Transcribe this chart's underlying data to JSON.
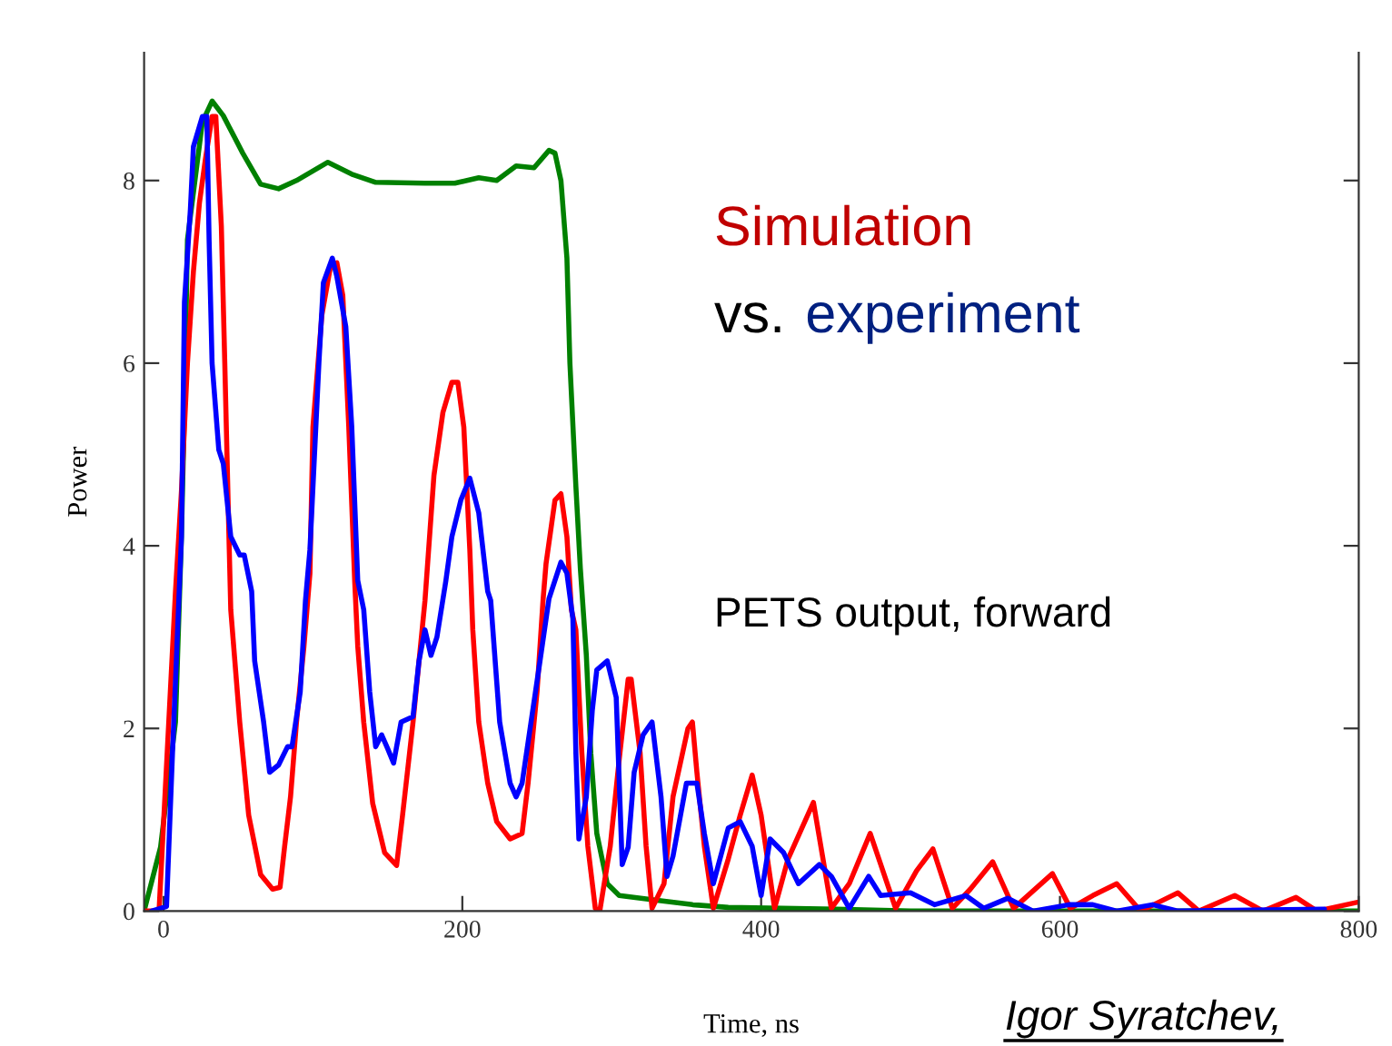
{
  "chart_data": {
    "type": "line",
    "xlabel": "Time, ns",
    "ylabel": "Power",
    "xlim": [
      -13,
      800
    ],
    "ylim": [
      0,
      9.4
    ],
    "xticks": [
      0,
      200,
      400,
      600,
      800
    ],
    "yticks": [
      0,
      2,
      4,
      6,
      8
    ],
    "annotations": [
      "Simulation",
      "vs.",
      "experiment",
      "PETS output, forward",
      "Igor Syratchev,"
    ],
    "series": [
      {
        "color": "#008000",
        "x": [
          -13,
          -2,
          8,
          12,
          14,
          16,
          26,
          32.5,
          40,
          53,
          65,
          77,
          89,
          110,
          126,
          142,
          175,
          195,
          211,
          223,
          236,
          248,
          258,
          262,
          266,
          270,
          272,
          276,
          279,
          283,
          286,
          290,
          297,
          305,
          329,
          354,
          378,
          450,
          500,
          800
        ],
        "values": [
          0,
          0.7,
          2.07,
          4.1,
          5.5,
          7.35,
          8.64,
          8.87,
          8.71,
          8.3,
          7.96,
          7.91,
          8.0,
          8.2,
          8.07,
          7.98,
          7.97,
          7.97,
          8.03,
          8.0,
          8.16,
          8.14,
          8.33,
          8.3,
          8.0,
          7.15,
          6.0,
          4.65,
          3.75,
          2.8,
          1.73,
          0.85,
          0.3,
          0.17,
          0.12,
          0.07,
          0.04,
          0.02,
          0,
          0
        ]
      },
      {
        "color": "#ff0000",
        "x": [
          -13,
          -3,
          8,
          12,
          16,
          20,
          24,
          28,
          32.5,
          35,
          38.7,
          41,
          44,
          45,
          51,
          57,
          65,
          73,
          78,
          81,
          85,
          89,
          94,
          98,
          100,
          106,
          112,
          116,
          120,
          124,
          128,
          130,
          134,
          140,
          148,
          156,
          160,
          167,
          175,
          181,
          187,
          193,
          197,
          201,
          205,
          207,
          211,
          217,
          223,
          232,
          240,
          244,
          250,
          254,
          256,
          262,
          266,
          270,
          273,
          276,
          280,
          284,
          289,
          292,
          299,
          305,
          311,
          313,
          319,
          323,
          327,
          335,
          341,
          351,
          354,
          357,
          362,
          368,
          378,
          386,
          394,
          400,
          409,
          418,
          435,
          447,
          459,
          473,
          490,
          504,
          515,
          528,
          540,
          555,
          569,
          595,
          607,
          622,
          638,
          654,
          679,
          693,
          717,
          736,
          758,
          772,
          800
        ],
        "values": [
          0,
          0,
          3.5,
          4.6,
          6.0,
          7.0,
          7.75,
          8.23,
          8.7,
          8.7,
          7.5,
          6.0,
          3.96,
          3.3,
          2.07,
          1.05,
          0.4,
          0.24,
          0.26,
          0.7,
          1.25,
          2.07,
          2.9,
          3.7,
          5.3,
          6.53,
          7.08,
          7.1,
          6.74,
          5.3,
          3.6,
          2.9,
          2.07,
          1.18,
          0.64,
          0.5,
          1.05,
          2.07,
          3.4,
          4.77,
          5.46,
          5.79,
          5.79,
          5.3,
          3.96,
          3.08,
          2.07,
          1.4,
          0.98,
          0.79,
          0.85,
          1.4,
          2.4,
          3.4,
          3.8,
          4.5,
          4.57,
          4.1,
          3.3,
          3.08,
          1.73,
          0.71,
          0.03,
          0,
          0.71,
          1.66,
          2.54,
          2.54,
          1.73,
          0.71,
          0.03,
          0.3,
          1.25,
          2.0,
          2.07,
          1.52,
          0.71,
          0.03,
          0.57,
          1.05,
          1.49,
          1.05,
          0.03,
          0.57,
          1.19,
          0.03,
          0.3,
          0.85,
          0.03,
          0.44,
          0.68,
          0.03,
          0.24,
          0.54,
          0.03,
          0.41,
          0.03,
          0.17,
          0.3,
          0,
          0.2,
          0,
          0.17,
          0,
          0.15,
          0,
          0.1
        ]
      },
      {
        "color": "#0000ff",
        "x": [
          -8,
          2,
          6,
          12,
          14,
          18,
          20,
          26,
          29,
          30.5,
          32.5,
          37,
          40,
          45,
          51,
          54,
          59,
          61,
          67,
          71,
          77,
          83,
          86,
          91.5,
          95,
          98,
          104,
          107,
          113,
          116,
          122,
          126,
          130,
          134,
          138,
          142,
          146,
          150,
          154,
          159,
          167,
          171,
          175,
          179,
          183,
          189,
          193,
          199,
          205,
          211,
          217,
          219,
          225,
          232,
          236,
          240,
          246,
          252,
          258,
          266,
          270,
          274,
          276,
          278,
          283,
          287,
          290,
          297,
          303,
          307,
          311,
          315,
          321,
          327,
          333,
          337,
          341,
          350,
          357,
          362,
          368,
          378,
          386,
          394,
          400,
          406,
          415,
          425,
          439,
          447,
          459,
          472,
          480,
          500,
          516,
          537,
          549,
          565,
          582,
          606,
          622,
          638,
          662,
          679,
          777
        ],
        "values": [
          0,
          0.05,
          1.73,
          4.1,
          6.67,
          7.69,
          8.37,
          8.7,
          8.7,
          7.35,
          6.0,
          5.05,
          4.9,
          4.1,
          3.9,
          3.9,
          3.5,
          2.74,
          2.07,
          1.52,
          1.6,
          1.8,
          1.8,
          2.4,
          3.4,
          3.96,
          6.0,
          6.88,
          7.15,
          6.95,
          6.4,
          5.3,
          3.62,
          3.3,
          2.4,
          1.8,
          1.93,
          1.78,
          1.62,
          2.07,
          2.13,
          2.74,
          3.08,
          2.8,
          3.0,
          3.62,
          4.1,
          4.5,
          4.74,
          4.36,
          3.5,
          3.4,
          2.07,
          1.4,
          1.25,
          1.4,
          2.07,
          2.74,
          3.42,
          3.82,
          3.7,
          3.2,
          1.73,
          0.79,
          1.25,
          2.2,
          2.64,
          2.74,
          2.34,
          0.51,
          0.7,
          1.52,
          1.93,
          2.07,
          1.25,
          0.38,
          0.6,
          1.4,
          1.4,
          0.85,
          0.3,
          0.91,
          0.98,
          0.71,
          0.17,
          0.79,
          0.64,
          0.3,
          0.51,
          0.38,
          0.03,
          0.38,
          0.17,
          0.2,
          0.07,
          0.17,
          0.03,
          0.14,
          0,
          0.07,
          0.07,
          0,
          0.07,
          0,
          0.02
        ]
      }
    ]
  }
}
